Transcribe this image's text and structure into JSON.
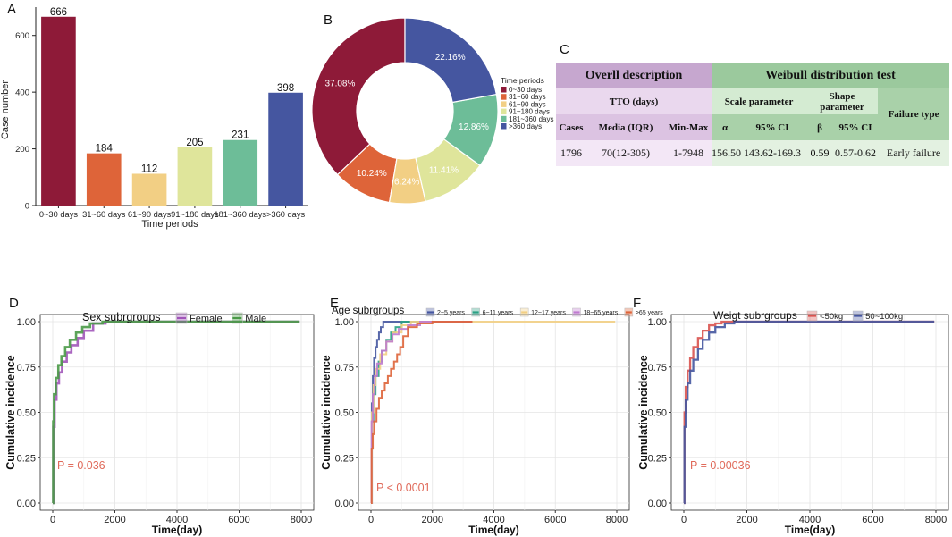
{
  "panel_labels": {
    "a": "A",
    "b": "B",
    "c": "C",
    "d": "D",
    "e": "E",
    "f": "F"
  },
  "chart_data": [
    {
      "id": "A",
      "type": "bar",
      "categories": [
        "0~30 days",
        "31~60 days",
        "61~90 days",
        "91~180 days",
        "181~360 days",
        ">360 days"
      ],
      "values": [
        666,
        184,
        112,
        205,
        231,
        398
      ],
      "colors": [
        "#8e1a38",
        "#de6439",
        "#f2cf84",
        "#dfe59b",
        "#6dbd98",
        "#4556a0"
      ],
      "xlabel": "Time periods",
      "ylabel": "Case number",
      "ylim": [
        0,
        700
      ],
      "yticks": [
        0,
        200,
        400,
        600
      ]
    },
    {
      "id": "B",
      "type": "pie",
      "labels": [
        "0~30 days",
        "31~60 days",
        "61~90 days",
        "91~180 days",
        "181~360 days",
        ">360 days"
      ],
      "values": [
        37.08,
        10.24,
        6.24,
        11.41,
        12.86,
        22.16
      ],
      "slice_labels": [
        "37.08%",
        "10.24%",
        "6.24%",
        "11.41%",
        "12.86%",
        "22.16%"
      ],
      "colors": [
        "#8e1a38",
        "#de6439",
        "#f2cf84",
        "#dfe59b",
        "#6dbd98",
        "#4556a0"
      ],
      "legend_title": "Time periods",
      "legend_labels": [
        "0~30 days",
        "31~60 days",
        "61~90 days",
        "91~180 days",
        "181~360 days",
        ">360 days"
      ]
    },
    {
      "id": "C",
      "type": "table",
      "header_left": "Overll description",
      "header_right": "Weibull distribution test",
      "sub_tto": "TTO (days)",
      "sub_scale": "Scale parameter",
      "sub_shape": "Shape parameter",
      "sub_failure": "Failure type",
      "columns": [
        "Cases",
        "Media (IQR)",
        "Min-Max",
        "α",
        "95% CI",
        "β",
        "95% CI"
      ],
      "row": [
        "1796",
        "70(12-305)",
        "1-7948",
        "156.50",
        "143.62-169.3",
        "0.59",
        "0.57-0.62",
        "Early failure"
      ]
    },
    {
      "id": "D",
      "type": "line",
      "title": "Sex subrgroups",
      "xlabel": "Time(day)",
      "ylabel": "Cumulative incidence",
      "xlim": [
        0,
        8000
      ],
      "ylim": [
        0,
        1
      ],
      "xticks": [
        0,
        2000,
        4000,
        6000,
        8000
      ],
      "yticks": [
        "0.00",
        "0.25",
        "0.50",
        "0.75",
        "1.00"
      ],
      "p_value": "P = 0.036",
      "series": [
        {
          "name": "Female",
          "color": "#a155b9",
          "x": [
            0,
            20,
            60,
            120,
            200,
            300,
            450,
            600,
            800,
            1000,
            1300,
            1700,
            7948
          ],
          "y": [
            0,
            0.42,
            0.57,
            0.66,
            0.72,
            0.78,
            0.83,
            0.87,
            0.91,
            0.95,
            0.99,
            1.0,
            1.0
          ]
        },
        {
          "name": "Male",
          "color": "#4a9a47",
          "x": [
            0,
            15,
            40,
            100,
            180,
            280,
            400,
            550,
            750,
            950,
            1200,
            1600,
            7948
          ],
          "y": [
            0,
            0.45,
            0.6,
            0.69,
            0.76,
            0.81,
            0.86,
            0.9,
            0.94,
            0.97,
            0.99,
            1.0,
            1.0
          ]
        }
      ]
    },
    {
      "id": "E",
      "type": "line",
      "title": "Age subrgroups",
      "xlabel": "Time(day)",
      "ylabel": "Cumulative incidence",
      "xlim": [
        0,
        8000
      ],
      "ylim": [
        0,
        1
      ],
      "xticks": [
        0,
        2000,
        4000,
        6000,
        8000
      ],
      "yticks": [
        "0.00",
        "0.25",
        "0.50",
        "0.75",
        "1.00"
      ],
      "p_value": "P < 0.0001",
      "series": [
        {
          "name": "2~5 years",
          "color": "#4556a0",
          "x": [
            0,
            30,
            60,
            100,
            150,
            200,
            260,
            320,
            400,
            3300
          ],
          "y": [
            0,
            0.55,
            0.7,
            0.8,
            0.86,
            0.9,
            0.94,
            0.97,
            1.0,
            1.0
          ]
        },
        {
          "name": "6~11 years",
          "color": "#2ba085",
          "x": [
            0,
            30,
            80,
            150,
            250,
            350,
            500,
            650,
            800,
            1000,
            3300
          ],
          "y": [
            0,
            0.45,
            0.6,
            0.7,
            0.78,
            0.84,
            0.9,
            0.94,
            0.97,
            1.0,
            1.0
          ]
        },
        {
          "name": "12~17 years",
          "color": "#f2cf84",
          "x": [
            0,
            30,
            80,
            150,
            300,
            500,
            700,
            1000,
            1300,
            7948
          ],
          "y": [
            0,
            0.5,
            0.65,
            0.74,
            0.82,
            0.89,
            0.94,
            0.98,
            1.0,
            1.0
          ]
        },
        {
          "name": "18~65 years",
          "color": "#c07bd0",
          "x": [
            0,
            20,
            60,
            120,
            200,
            350,
            500,
            700,
            900,
            1200,
            1600,
            3300
          ],
          "y": [
            0,
            0.45,
            0.6,
            0.7,
            0.77,
            0.84,
            0.89,
            0.93,
            0.96,
            0.98,
            1.0,
            1.0
          ]
        },
        {
          "name": ">65 years",
          "color": "#de6439",
          "x": [
            0,
            20,
            60,
            100,
            180,
            260,
            350,
            450,
            550,
            650,
            750,
            850,
            950,
            1050,
            1200,
            1500,
            2000,
            3300
          ],
          "y": [
            0,
            0.3,
            0.38,
            0.45,
            0.52,
            0.58,
            0.62,
            0.66,
            0.7,
            0.74,
            0.78,
            0.82,
            0.86,
            0.92,
            0.97,
            0.99,
            1.0,
            1.0
          ]
        }
      ]
    },
    {
      "id": "F",
      "type": "line",
      "title": "Weigt subrgroups",
      "xlabel": "Time(day)",
      "ylabel": "Cumulative incidence",
      "xlim": [
        0,
        8000
      ],
      "ylim": [
        0,
        1
      ],
      "xticks": [
        0,
        2000,
        4000,
        6000,
        8000
      ],
      "yticks": [
        "0.00",
        "0.25",
        "0.50",
        "0.75",
        "1.00"
      ],
      "p_value": "P = 0.00036",
      "series": [
        {
          "name": "<50kg",
          "color": "#d9534f",
          "x": [
            0,
            20,
            60,
            120,
            200,
            300,
            450,
            600,
            800,
            1000,
            1200,
            7948
          ],
          "y": [
            0,
            0.5,
            0.64,
            0.73,
            0.8,
            0.86,
            0.91,
            0.95,
            0.98,
            0.99,
            1.0,
            1.0
          ]
        },
        {
          "name": "50~100kg",
          "color": "#4556a0",
          "x": [
            0,
            20,
            60,
            120,
            200,
            300,
            450,
            600,
            800,
            1000,
            1300,
            1600,
            7948
          ],
          "y": [
            0,
            0.42,
            0.57,
            0.66,
            0.73,
            0.79,
            0.85,
            0.9,
            0.94,
            0.97,
            0.99,
            1.0,
            1.0
          ]
        }
      ]
    }
  ]
}
